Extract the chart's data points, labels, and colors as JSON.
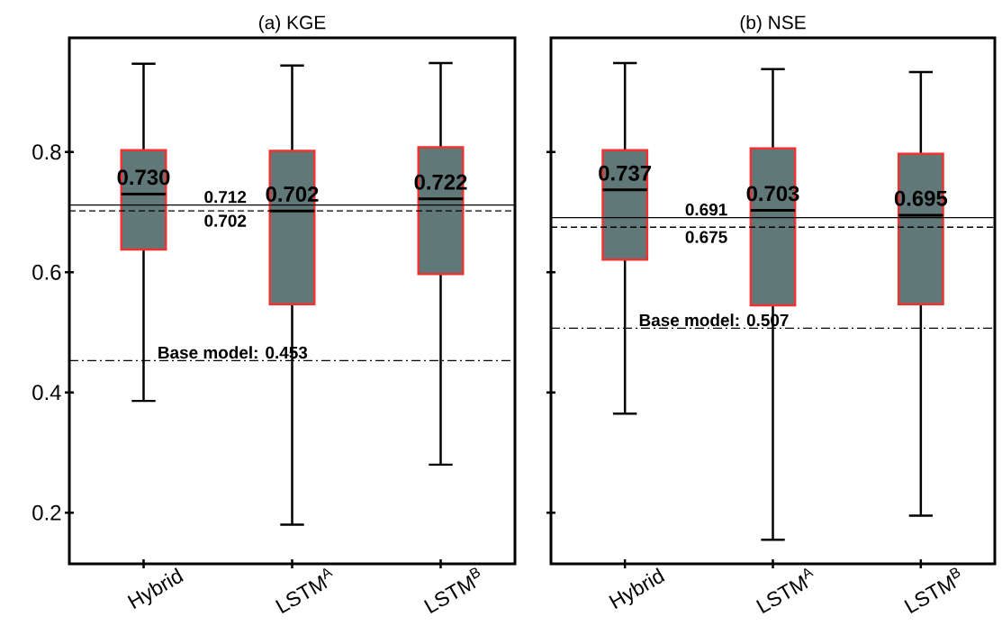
{
  "chart_data": [
    {
      "type": "box",
      "title": "(a) KGE",
      "categories": [
        "Hybrid",
        "LSTM$^{A}$",
        "LSTM$^{B}$"
      ],
      "series": [
        {
          "color": "#607877",
          "boxes": [
            {
              "low": 0.386,
              "q1": 0.638,
              "median": 0.73,
              "q3": 0.803,
              "high": 0.947
            },
            {
              "low": 0.18,
              "q1": 0.547,
              "median": 0.702,
              "q3": 0.802,
              "high": 0.944
            },
            {
              "low": 0.28,
              "q1": 0.597,
              "median": 0.722,
              "q3": 0.808,
              "high": 0.948
            }
          ]
        }
      ],
      "ylim": [
        0.115,
        0.99
      ],
      "yticks": [
        0.2,
        0.4,
        0.6,
        0.8
      ],
      "ref_lines": [
        {
          "axis": "y",
          "value": 0.712,
          "label": "0.712",
          "line_style": "solid"
        },
        {
          "axis": "y",
          "value": 0.702,
          "label": "0.702",
          "line_style": "dashed"
        },
        {
          "axis": "y",
          "value": 0.453,
          "label": "Base model: 0.453",
          "line_style": "dashdot"
        }
      ],
      "annotations": [
        "0.730",
        "0.702",
        "0.722"
      ]
    },
    {
      "type": "box",
      "title": "(b) NSE",
      "categories": [
        "Hybrid",
        "LSTM$^{A}$",
        "LSTM$^{B}$"
      ],
      "series": [
        {
          "color": "#607877",
          "boxes": [
            {
              "low": 0.365,
              "q1": 0.621,
              "median": 0.737,
              "q3": 0.803,
              "high": 0.948
            },
            {
              "low": 0.155,
              "q1": 0.545,
              "median": 0.703,
              "q3": 0.806,
              "high": 0.938
            },
            {
              "low": 0.195,
              "q1": 0.547,
              "median": 0.695,
              "q3": 0.797,
              "high": 0.933
            }
          ]
        }
      ],
      "ylim": [
        0.115,
        0.99
      ],
      "yticks": [
        0.2,
        0.4,
        0.6,
        0.8
      ],
      "tick_labels": "x",
      "ref_lines": [
        {
          "axis": "y",
          "value": 0.691,
          "label": "0.691",
          "line_style": "solid"
        },
        {
          "axis": "y",
          "value": 0.675,
          "label": "0.675",
          "line_style": "dashed"
        },
        {
          "axis": "y",
          "value": 0.507,
          "label": "Base model: 0.507",
          "line_style": "dashdot"
        }
      ],
      "annotations": [
        "0.737",
        "0.703",
        "0.695"
      ]
    }
  ]
}
